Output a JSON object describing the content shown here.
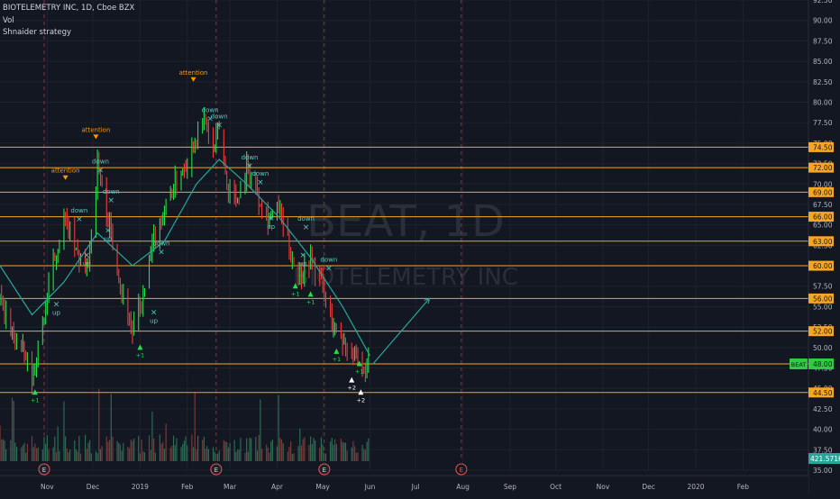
{
  "header": {
    "symbol_line": "BIOTELEMETRY INC, 1D, Cboe BZX",
    "vol_label": "Vol",
    "strategy_label": "Shnaider strategy"
  },
  "watermark": {
    "ticker": "BEAT, 1D",
    "company": "BIOTELEMETRY INC"
  },
  "colors": {
    "background": "#131722",
    "grid": "#1e222d",
    "axis_text": "#b2b5be",
    "level_line": "#f5a623",
    "ma_line": "#26a69a",
    "bar_up": "#26de4a",
    "bar_down": "#ef3b3b",
    "vol_up": "#2f6b55",
    "vol_down": "#7a3a3a",
    "attention": "#ff9800",
    "signal": "#4dd0c4",
    "current_price_bg": "#2ecc40",
    "vol_label_bg": "#26a69a",
    "earnings": "#ef5350"
  },
  "chart_data": {
    "type": "line",
    "title": "BIOTELEMETRY INC, 1D, Cboe BZX",
    "ylim": [
      35,
      92.5
    ],
    "y_ticks": [
      "92.50",
      "90.00",
      "87.50",
      "85.00",
      "82.50",
      "80.00",
      "77.50",
      "75.00",
      "72.50",
      "70.00",
      "67.50",
      "65.00",
      "62.50",
      "60.00",
      "57.50",
      "55.00",
      "52.50",
      "50.00",
      "47.50",
      "45.00",
      "42.50",
      "40.00",
      "37.50",
      "35.00"
    ],
    "x_ticks": [
      "Nov",
      "Dec",
      "2019",
      "Feb",
      "Mar",
      "Apr",
      "May",
      "Jun",
      "Jul",
      "Aug",
      "Sep",
      "Oct",
      "Nov",
      "Dec",
      "2020",
      "Feb"
    ],
    "x_tick_dates": [
      "2018-11-01",
      "2018-12-01",
      "2019-01-01",
      "2019-02-01",
      "2019-03-01",
      "2019-04-01",
      "2019-05-01",
      "2019-06-01",
      "2019-07-01",
      "2019-08-01",
      "2019-09-01",
      "2019-10-01",
      "2019-11-01",
      "2019-12-01",
      "2020-01-01",
      "2020-02-01"
    ],
    "xlim": [
      "2018-10-01",
      "2020-03-15"
    ],
    "price_path": [
      [
        "2018-10-01",
        56
      ],
      [
        "2018-10-08",
        52
      ],
      [
        "2018-10-15",
        50
      ],
      [
        "2018-10-22",
        46
      ],
      [
        "2018-10-29",
        53
      ],
      [
        "2018-11-05",
        60
      ],
      [
        "2018-11-12",
        66
      ],
      [
        "2018-11-19",
        62
      ],
      [
        "2018-11-26",
        59
      ],
      [
        "2018-12-01",
        65
      ],
      [
        "2018-12-04",
        73
      ],
      [
        "2018-12-08",
        68
      ],
      [
        "2018-12-14",
        63
      ],
      [
        "2018-12-20",
        57
      ],
      [
        "2018-12-27",
        52
      ],
      [
        "2019-01-03",
        56
      ],
      [
        "2019-01-10",
        63
      ],
      [
        "2019-01-17",
        67
      ],
      [
        "2019-01-24",
        70
      ],
      [
        "2019-02-01",
        73
      ],
      [
        "2019-02-07",
        76
      ],
      [
        "2019-02-12",
        78
      ],
      [
        "2019-02-18",
        74
      ],
      [
        "2019-02-22",
        77
      ],
      [
        "2019-02-27",
        70
      ],
      [
        "2019-03-05",
        68
      ],
      [
        "2019-03-12",
        72
      ],
      [
        "2019-03-19",
        69
      ],
      [
        "2019-03-26",
        66
      ],
      [
        "2019-04-02",
        67
      ],
      [
        "2019-04-09",
        62
      ],
      [
        "2019-04-16",
        59
      ],
      [
        "2019-04-23",
        61
      ],
      [
        "2019-04-30",
        58
      ],
      [
        "2019-05-07",
        53
      ],
      [
        "2019-05-14",
        51
      ],
      [
        "2019-05-21",
        49
      ],
      [
        "2019-05-28",
        47
      ],
      [
        "2019-06-01",
        48
      ]
    ],
    "ma_path": [
      [
        "2018-10-01",
        60
      ],
      [
        "2018-10-22",
        54
      ],
      [
        "2018-11-12",
        58
      ],
      [
        "2018-12-04",
        64
      ],
      [
        "2018-12-27",
        60
      ],
      [
        "2019-01-17",
        63
      ],
      [
        "2019-02-07",
        70
      ],
      [
        "2019-02-22",
        73
      ],
      [
        "2019-03-12",
        70
      ],
      [
        "2019-04-02",
        66
      ],
      [
        "2019-04-23",
        61
      ],
      [
        "2019-05-14",
        55
      ],
      [
        "2019-06-01",
        49
      ]
    ],
    "projection": {
      "from": [
        "2019-06-03",
        48
      ],
      "to": [
        "2019-07-10",
        56
      ]
    },
    "levels": [
      "74.50",
      "72.00",
      "69.00",
      "66.00",
      "63.00",
      "60.00",
      "56.00",
      "52.00",
      "48.00",
      "44.50"
    ],
    "level_values": [
      74.5,
      72,
      69,
      66,
      63,
      60,
      56,
      52,
      48,
      44.5
    ],
    "current_price": "48.00",
    "current_price_value": 48,
    "volume_label": "421.571K",
    "annotations": [
      {
        "text": "attention",
        "date": "2018-11-13",
        "price": 70.5,
        "kind": "attention"
      },
      {
        "text": "attention",
        "date": "2018-12-03",
        "price": 75.5,
        "kind": "attention"
      },
      {
        "text": "attention",
        "date": "2019-02-05",
        "price": 82.5,
        "kind": "attention"
      },
      {
        "text": "down",
        "date": "2018-11-22",
        "price": 66.5,
        "kind": "down"
      },
      {
        "text": "down",
        "date": "2018-12-06",
        "price": 72.5,
        "kind": "down"
      },
      {
        "text": "down",
        "date": "2019-02-16",
        "price": 78.8,
        "kind": "down"
      },
      {
        "text": "down",
        "date": "2019-02-22",
        "price": 78.0,
        "kind": "down"
      },
      {
        "text": "down",
        "date": "2019-03-14",
        "price": 73.0,
        "kind": "down"
      },
      {
        "text": "down",
        "date": "2019-03-21",
        "price": 71.0,
        "kind": "down"
      },
      {
        "text": "down",
        "date": "2019-04-20",
        "price": 65.5,
        "kind": "down"
      },
      {
        "text": "down",
        "date": "2019-01-15",
        "price": 62.5,
        "kind": "down"
      },
      {
        "text": "down",
        "date": "2019-05-05",
        "price": 60.5,
        "kind": "down"
      },
      {
        "text": "down",
        "date": "2018-12-13",
        "price": 68.8,
        "kind": "down"
      },
      {
        "text": "up",
        "date": "2018-11-07",
        "price": 55.0,
        "kind": "up"
      },
      {
        "text": "up",
        "date": "2018-11-27",
        "price": 61.0,
        "kind": "up"
      },
      {
        "text": "up",
        "date": "2018-12-11",
        "price": 64.0,
        "kind": "up"
      },
      {
        "text": "up",
        "date": "2019-01-10",
        "price": 54.0,
        "kind": "up"
      },
      {
        "text": "up",
        "date": "2019-03-28",
        "price": 65.5,
        "kind": "up"
      },
      {
        "text": "up",
        "date": "2019-04-18",
        "price": 61.0,
        "kind": "up"
      },
      {
        "text": "+1",
        "date": "2018-10-24",
        "price": 44.0,
        "kind": "plus"
      },
      {
        "text": "+1",
        "date": "2019-01-01",
        "price": 49.5,
        "kind": "plus"
      },
      {
        "text": "+1",
        "date": "2019-04-13",
        "price": 57.0,
        "kind": "plus"
      },
      {
        "text": "+1",
        "date": "2019-04-23",
        "price": 56.0,
        "kind": "plus"
      },
      {
        "text": "+1",
        "date": "2019-05-10",
        "price": 49.0,
        "kind": "plus"
      },
      {
        "text": "+1",
        "date": "2019-05-25",
        "price": 47.5,
        "kind": "plus"
      },
      {
        "text": "+2",
        "date": "2019-05-20",
        "price": 45.5,
        "kind": "plus"
      },
      {
        "text": "+2",
        "date": "2019-05-26",
        "price": 44.0,
        "kind": "plus"
      }
    ],
    "earnings_markers": [
      {
        "date": "2018-10-30",
        "label": "E",
        "filled": true
      },
      {
        "date": "2019-02-20",
        "label": "E",
        "filled": true
      },
      {
        "date": "2019-05-02",
        "label": "E",
        "filled": true
      },
      {
        "date": "2019-07-31",
        "label": "E",
        "filled": false
      }
    ]
  }
}
